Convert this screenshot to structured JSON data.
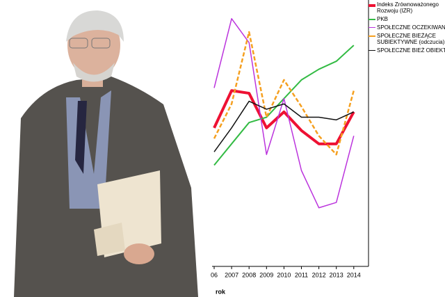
{
  "chart_data": {
    "type": "line",
    "x_label": "rok",
    "categories": [
      "06",
      "2007",
      "2008",
      "2009",
      "2010",
      "2011",
      "2012",
      "2013",
      "2014"
    ],
    "ylim": [
      0,
      100
    ],
    "series": [
      {
        "name": "Indeks Zrównoważonego Rozwoju (IZR)",
        "color": "#ee1133",
        "width": 4,
        "dash": false,
        "values": [
          52,
          66,
          65,
          52,
          58,
          51,
          46,
          46,
          58
        ]
      },
      {
        "name": "PKB",
        "color": "#33bb44",
        "width": 2,
        "dash": false,
        "values": [
          38,
          46,
          54,
          56,
          63,
          70,
          74,
          77,
          83
        ]
      },
      {
        "name": "SPOŁECZNE OCZEKIWANIA",
        "color": "#bb33dd",
        "width": 1.5,
        "dash": false,
        "values": [
          67,
          93,
          84,
          42,
          63,
          36,
          22,
          24,
          49
        ]
      },
      {
        "name": "SPOŁECZNE BIEŻĄCE SUBIEKTYWNE (odczucia)",
        "color": "#f5a020",
        "width": 2.5,
        "dash": true,
        "values": [
          48,
          61,
          88,
          56,
          70,
          60,
          49,
          42,
          66
        ]
      },
      {
        "name": "SPOŁECZNE BIEŻ OBIEKTYWNE",
        "color": "#111111",
        "width": 1.5,
        "dash": false,
        "values": [
          43,
          52,
          62,
          59,
          61,
          56,
          56,
          55,
          58
        ]
      }
    ]
  }
}
